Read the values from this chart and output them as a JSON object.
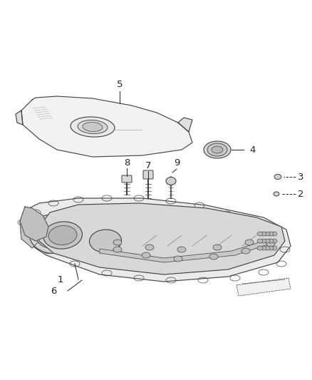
{
  "bg_color": "#ffffff",
  "line_color": "#404040",
  "fig_width": 4.38,
  "fig_height": 5.33,
  "dpi": 100
}
